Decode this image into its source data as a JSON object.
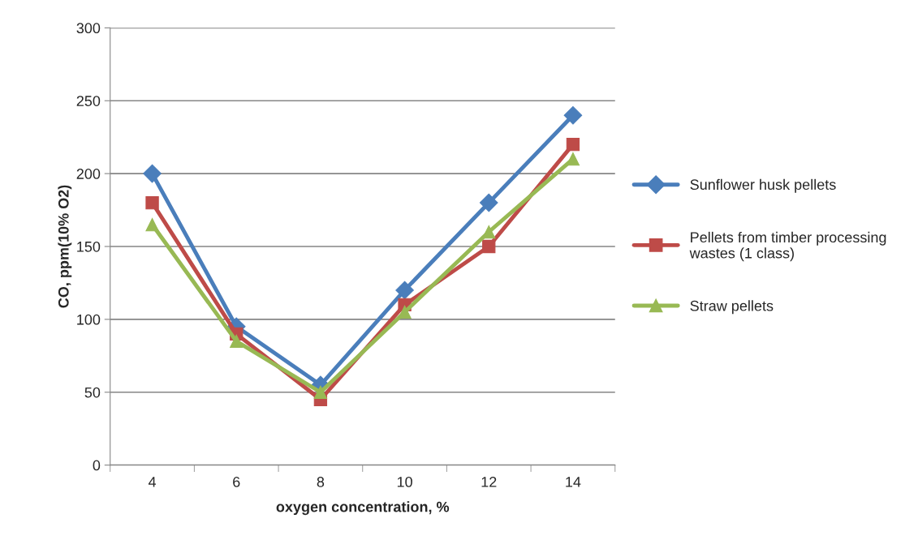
{
  "chart_data": {
    "type": "line",
    "xlabel": "oxygen concentration, %",
    "ylabel": "CO, ppm(10% O2)",
    "categories": [
      "4",
      "6",
      "8",
      "10",
      "12",
      "14"
    ],
    "series": [
      {
        "name": "Sunflower husk pellets",
        "color": "#4a7ebb",
        "marker": "diamond",
        "values": [
          200,
          95,
          55,
          120,
          180,
          240
        ]
      },
      {
        "name": "Pellets from timber processing wastes (1 class)",
        "color": "#be4b48",
        "marker": "square",
        "values": [
          180,
          90,
          45,
          110,
          150,
          220
        ]
      },
      {
        "name": "Straw pellets",
        "color": "#98b954",
        "marker": "triangle",
        "values": [
          165,
          85,
          50,
          105,
          160,
          210
        ]
      }
    ],
    "ylim": [
      0,
      300
    ],
    "yticks": [
      0,
      50,
      100,
      150,
      200,
      250,
      300
    ],
    "grid": "y",
    "legend": "right"
  }
}
